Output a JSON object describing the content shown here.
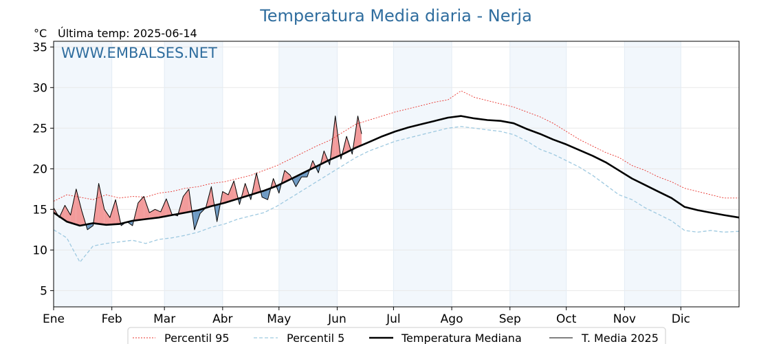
{
  "title": "Temperatura Media diaria - Nerja",
  "unit_label": "°C",
  "last_temp_label": "Última temp: 2025-06-14",
  "watermark": "WWW.EMBALSES.NET",
  "colors": {
    "title": "#2f6d9e",
    "p95": "#e8302a",
    "p5": "#9ec9e0",
    "median": "#000000",
    "actual": "#000000",
    "above_fill": "#f29b9b",
    "below_fill": "#6f9bc4",
    "band": "#f2f7fc"
  },
  "chart_data": {
    "type": "line",
    "title": "Temperatura Media diaria - Nerja",
    "ylabel": "°C",
    "ylim": [
      3,
      35.7
    ],
    "yticks": [
      5,
      10,
      15,
      20,
      25,
      30,
      35
    ],
    "xlim": [
      1,
      366
    ],
    "month_labels": [
      "Ene",
      "Feb",
      "Mar",
      "Abr",
      "May",
      "Jun",
      "Jul",
      "Ago",
      "Sep",
      "Oct",
      "Nov",
      "Dic"
    ],
    "month_start_days": [
      1,
      32,
      60,
      91,
      121,
      152,
      182,
      213,
      244,
      274,
      305,
      335
    ],
    "grid": true,
    "legend_position": "bottom",
    "series": [
      {
        "name": "Percentil 95",
        "style": "dotted",
        "x": [
          1,
          8,
          15,
          22,
          29,
          36,
          43,
          50,
          57,
          64,
          71,
          78,
          85,
          92,
          99,
          106,
          113,
          120,
          127,
          134,
          141,
          148,
          155,
          162,
          169,
          176,
          183,
          190,
          197,
          204,
          211,
          218,
          225,
          232,
          239,
          246,
          253,
          260,
          267,
          274,
          281,
          288,
          295,
          302,
          309,
          316,
          323,
          330,
          337,
          344,
          351,
          358,
          366
        ],
        "y": [
          16.0,
          16.8,
          16.5,
          16.2,
          16.8,
          16.4,
          16.6,
          16.5,
          17.0,
          17.2,
          17.6,
          17.8,
          18.2,
          18.4,
          18.8,
          19.2,
          19.8,
          20.4,
          21.2,
          22.0,
          22.8,
          23.5,
          24.5,
          25.5,
          26.0,
          26.5,
          27.0,
          27.4,
          27.8,
          28.2,
          28.5,
          29.6,
          28.8,
          28.4,
          28.0,
          27.6,
          27.0,
          26.4,
          25.6,
          24.6,
          23.6,
          22.8,
          22.0,
          21.4,
          20.4,
          19.8,
          19.0,
          18.4,
          17.6,
          17.2,
          16.8,
          16.4,
          16.4
        ]
      },
      {
        "name": "Percentil 5",
        "style": "dashed",
        "x": [
          1,
          8,
          15,
          22,
          29,
          36,
          43,
          50,
          57,
          64,
          71,
          78,
          85,
          92,
          99,
          106,
          113,
          120,
          127,
          134,
          141,
          148,
          155,
          162,
          169,
          176,
          183,
          190,
          197,
          204,
          211,
          218,
          225,
          232,
          239,
          246,
          253,
          260,
          267,
          274,
          281,
          288,
          295,
          302,
          309,
          316,
          323,
          330,
          337,
          344,
          351,
          358,
          366
        ],
        "y": [
          12.5,
          11.5,
          8.5,
          10.5,
          10.8,
          11.0,
          11.2,
          10.8,
          11.3,
          11.5,
          11.8,
          12.2,
          12.8,
          13.2,
          13.8,
          14.2,
          14.6,
          15.4,
          16.4,
          17.4,
          18.4,
          19.4,
          20.4,
          21.4,
          22.2,
          22.8,
          23.4,
          23.8,
          24.2,
          24.6,
          25.0,
          25.2,
          25.0,
          24.8,
          24.6,
          24.2,
          23.4,
          22.4,
          21.8,
          21.0,
          20.2,
          19.2,
          18.0,
          16.8,
          16.2,
          15.2,
          14.4,
          13.6,
          12.4,
          12.2,
          12.4,
          12.2,
          12.3
        ]
      },
      {
        "name": "Temperatura Mediana",
        "style": "bold",
        "x": [
          1,
          8,
          15,
          22,
          29,
          36,
          43,
          50,
          57,
          64,
          71,
          78,
          85,
          92,
          99,
          106,
          113,
          120,
          127,
          134,
          141,
          148,
          155,
          162,
          169,
          176,
          183,
          190,
          197,
          204,
          211,
          218,
          225,
          232,
          239,
          246,
          253,
          260,
          267,
          274,
          281,
          288,
          295,
          302,
          309,
          316,
          323,
          330,
          337,
          344,
          351,
          358,
          366
        ],
        "y": [
          14.6,
          13.5,
          13.0,
          13.3,
          13.1,
          13.2,
          13.6,
          13.8,
          14.0,
          14.3,
          14.6,
          14.9,
          15.4,
          15.8,
          16.3,
          16.8,
          17.3,
          17.9,
          18.7,
          19.5,
          20.3,
          21.1,
          21.8,
          22.6,
          23.3,
          24.0,
          24.6,
          25.1,
          25.5,
          25.9,
          26.3,
          26.5,
          26.2,
          26.0,
          25.9,
          25.6,
          24.9,
          24.3,
          23.6,
          23.0,
          22.3,
          21.6,
          20.8,
          19.8,
          18.8,
          18.0,
          17.2,
          16.4,
          15.3,
          14.9,
          14.6,
          14.3,
          14.0
        ]
      },
      {
        "name": "T. Media 2025",
        "style": "thin",
        "x": [
          1,
          4,
          7,
          10,
          13,
          16,
          19,
          22,
          25,
          28,
          31,
          34,
          37,
          40,
          43,
          46,
          49,
          52,
          55,
          58,
          61,
          64,
          67,
          70,
          73,
          76,
          79,
          82,
          85,
          88,
          91,
          94,
          97,
          100,
          103,
          106,
          109,
          112,
          115,
          118,
          121,
          124,
          127,
          130,
          133,
          136,
          139,
          142,
          145,
          148,
          151,
          154,
          157,
          160,
          163,
          165
        ],
        "y": [
          15.2,
          14.0,
          15.5,
          14.3,
          17.5,
          14.8,
          12.5,
          13.0,
          18.2,
          15.0,
          14.0,
          16.2,
          13.0,
          13.5,
          13.0,
          15.8,
          16.6,
          14.6,
          15.0,
          14.7,
          16.3,
          14.4,
          14.2,
          16.6,
          17.5,
          12.5,
          14.5,
          15.2,
          17.8,
          13.5,
          17.2,
          16.8,
          18.5,
          15.6,
          18.2,
          16.2,
          19.5,
          16.5,
          16.2,
          18.8,
          17.0,
          19.8,
          19.2,
          17.8,
          19.0,
          19.0,
          21.0,
          19.5,
          22.2,
          20.5,
          26.5,
          21.2,
          24.0,
          21.8,
          26.5,
          24.3
        ]
      }
    ],
    "legend": [
      "Percentil 95",
      "Percentil 5",
      "Temperatura Mediana",
      "T. Media 2025"
    ]
  }
}
